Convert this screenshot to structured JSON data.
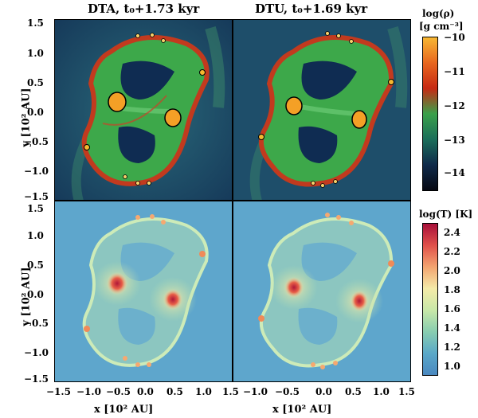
{
  "panels": {
    "top_left_title": "DTA, t₀+1.73 kyr",
    "top_right_title": "DTU, t₀+1.69 kyr"
  },
  "axes": {
    "xlabel": "x [10² AU]",
    "ylabel": "y [10² AU]",
    "x_ticks": [
      "−1.5",
      "−1.0",
      "−0.5",
      "0.0",
      "0.5",
      "1.0",
      "1.5"
    ],
    "y_ticks": [
      "1.5",
      "1.0",
      "0.5",
      "0.0",
      "−0.5",
      "−1.0",
      "−1.5"
    ]
  },
  "colorbars": {
    "density": {
      "title": "log(ρ)",
      "unit": "[g cm⁻³]",
      "ticks": [
        "−10",
        "−11",
        "−12",
        "−13",
        "−14"
      ],
      "colors": [
        "#f7b733",
        "#e8661e",
        "#c62a14",
        "#3aa14a",
        "#1b6e5a",
        "#0f2a4a",
        "#060812"
      ]
    },
    "temperature": {
      "title": "log(T) [K]",
      "ticks": [
        "2.4",
        "2.2",
        "2.0",
        "1.8",
        "1.6",
        "1.4",
        "1.2",
        "1.0"
      ],
      "colors": [
        "#a8103a",
        "#e0504a",
        "#f3a470",
        "#f4eaa8",
        "#c8e8a8",
        "#88cdb0",
        "#5aa8c8",
        "#4a88c0"
      ]
    }
  }
}
